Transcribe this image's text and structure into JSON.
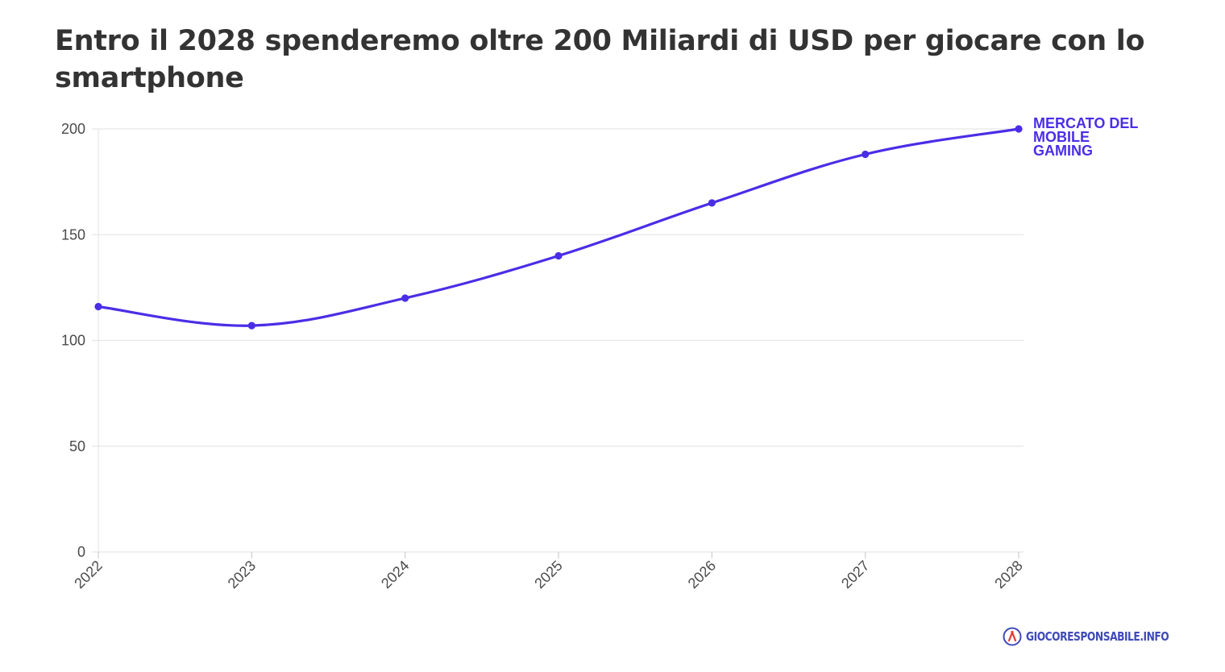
{
  "title": "Entro il 2028 spenderemo oltre 200 Miliardi di USD per giocare con lo smartphone",
  "footer": {
    "logo_text": "GIOCORESPONSABILE.INFO"
  },
  "colors": {
    "series": "#4a2ee6",
    "grid": "#e6e6e6",
    "axis_text": "#4a4a4a",
    "title": "#333333",
    "logo_text": "#3f4ab8"
  },
  "chart_data": {
    "type": "line",
    "title": "Entro il 2028 spenderemo oltre 200 Miliardi di USD per giocare con lo smartphone",
    "xlabel": "",
    "ylabel": "",
    "x": [
      "2022",
      "2023",
      "2024",
      "2025",
      "2026",
      "2027",
      "2028"
    ],
    "series": [
      {
        "name": "MERCATO DEL MOBILE GAMING",
        "values": [
          116,
          107,
          120,
          140,
          165,
          188,
          200
        ],
        "color": "#4a2ee6",
        "curve": "smooth",
        "markers": true
      }
    ],
    "series_label_lines": [
      "MERCATO DEL",
      "MOBILE",
      "GAMING"
    ],
    "ylim": [
      0,
      200
    ],
    "yticks": [
      0,
      50,
      100,
      150,
      200
    ],
    "grid": true,
    "legend": "direct label at end of line",
    "x_tick_rotation": "rotated -45 degrees"
  }
}
